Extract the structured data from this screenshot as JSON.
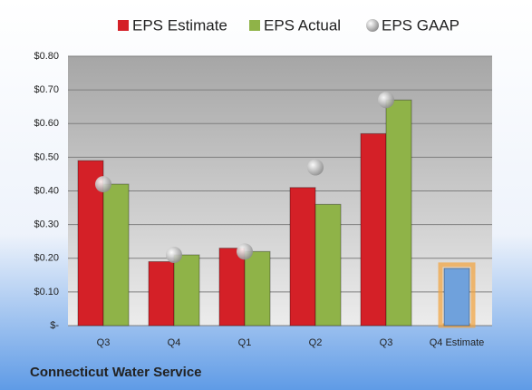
{
  "chart_data": {
    "type": "bar",
    "title": "Connecticut Water Service",
    "categories": [
      "Q3",
      "Q4",
      "Q1",
      "Q2",
      "Q3",
      "Q4 Estimate"
    ],
    "series": [
      {
        "name": "EPS Estimate",
        "color": "#d42027",
        "values": [
          0.49,
          0.19,
          0.23,
          0.41,
          0.57,
          0.17
        ],
        "point_colors": [
          null,
          null,
          null,
          null,
          null,
          "#6fa1dc"
        ],
        "glow_color": "#f2a23c"
      },
      {
        "name": "EPS Actual",
        "color": "#8fb348",
        "values": [
          0.42,
          0.21,
          0.22,
          0.36,
          0.67,
          null
        ]
      },
      {
        "name": "EPS GAAP",
        "type": "scatter",
        "color": "#b8b8b8",
        "values": [
          0.42,
          0.21,
          0.22,
          0.47,
          0.67,
          null
        ]
      }
    ],
    "ylim": [
      0,
      0.8
    ],
    "yticks": [
      {
        "value": 0,
        "label": "$-"
      },
      {
        "value": 0.1,
        "label": "$0.10"
      },
      {
        "value": 0.2,
        "label": "$0.20"
      },
      {
        "value": 0.3,
        "label": "$0.30"
      },
      {
        "value": 0.4,
        "label": "$0.40"
      },
      {
        "value": 0.5,
        "label": "$0.50"
      },
      {
        "value": 0.6,
        "label": "$0.60"
      },
      {
        "value": 0.7,
        "label": "$0.70"
      },
      {
        "value": 0.8,
        "label": "$0.80"
      }
    ],
    "grid": true
  }
}
